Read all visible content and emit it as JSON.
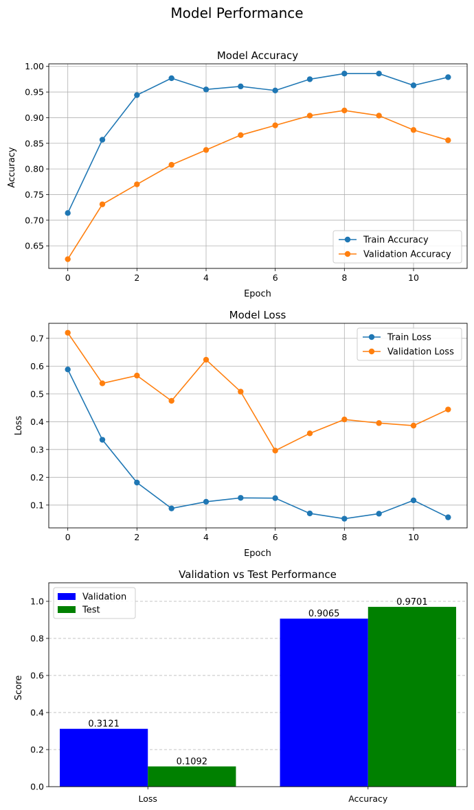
{
  "figure_title": "Model Performance",
  "chart_data": [
    {
      "type": "line",
      "title": "Model Accuracy",
      "xlabel": "Epoch",
      "ylabel": "Accuracy",
      "x": [
        0,
        1,
        2,
        3,
        4,
        5,
        6,
        7,
        8,
        9,
        10,
        11
      ],
      "xlim": [
        -0.55,
        11.55
      ],
      "ylim": [
        0.606,
        1.005
      ],
      "xticks": [
        0,
        2,
        4,
        6,
        8,
        10
      ],
      "yticks": [
        0.65,
        0.7,
        0.75,
        0.8,
        0.85,
        0.9,
        0.95,
        1.0
      ],
      "ytick_decimals": 2,
      "grid": true,
      "legend_position": "bottom-right",
      "series": [
        {
          "name": "Train Accuracy",
          "color": "#1f77b4",
          "values": [
            0.714,
            0.857,
            0.944,
            0.977,
            0.955,
            0.961,
            0.953,
            0.975,
            0.986,
            0.986,
            0.963,
            0.979
          ]
        },
        {
          "name": "Validation Accuracy",
          "color": "#ff7f0e",
          "values": [
            0.624,
            0.731,
            0.77,
            0.808,
            0.837,
            0.866,
            0.885,
            0.904,
            0.914,
            0.904,
            0.876,
            0.856
          ]
        }
      ]
    },
    {
      "type": "line",
      "title": "Model Loss",
      "xlabel": "Epoch",
      "ylabel": "Loss",
      "x": [
        0,
        1,
        2,
        3,
        4,
        5,
        6,
        7,
        8,
        9,
        10,
        11
      ],
      "xlim": [
        -0.55,
        11.55
      ],
      "ylim": [
        0.018,
        0.754
      ],
      "xticks": [
        0,
        2,
        4,
        6,
        8,
        10
      ],
      "yticks": [
        0.1,
        0.2,
        0.3,
        0.4,
        0.5,
        0.6,
        0.7
      ],
      "ytick_decimals": 1,
      "grid": true,
      "legend_position": "top-right",
      "series": [
        {
          "name": "Train Loss",
          "color": "#1f77b4",
          "values": [
            0.588,
            0.335,
            0.181,
            0.088,
            0.112,
            0.126,
            0.125,
            0.07,
            0.051,
            0.069,
            0.117,
            0.056
          ]
        },
        {
          "name": "Validation Loss",
          "color": "#ff7f0e",
          "values": [
            0.72,
            0.538,
            0.566,
            0.475,
            0.623,
            0.508,
            0.296,
            0.358,
            0.408,
            0.395,
            0.386,
            0.444
          ]
        }
      ]
    },
    {
      "type": "bar",
      "title": "Validation vs Test Performance",
      "xlabel": "",
      "ylabel": "Score",
      "categories": [
        "Loss",
        "Accuracy"
      ],
      "ylim": [
        0,
        1.1
      ],
      "yticks": [
        0.0,
        0.2,
        0.4,
        0.6,
        0.8,
        1.0
      ],
      "ytick_decimals": 1,
      "grid": "y-dashed",
      "legend_position": "top-left",
      "series": [
        {
          "name": "Validation",
          "color": "#0000ff",
          "values": [
            0.3121,
            0.9065
          ],
          "labels": [
            "0.3121",
            "0.9065"
          ]
        },
        {
          "name": "Test",
          "color": "#008000",
          "values": [
            0.1092,
            0.9701
          ],
          "labels": [
            "0.1092",
            "0.9701"
          ]
        }
      ]
    }
  ]
}
